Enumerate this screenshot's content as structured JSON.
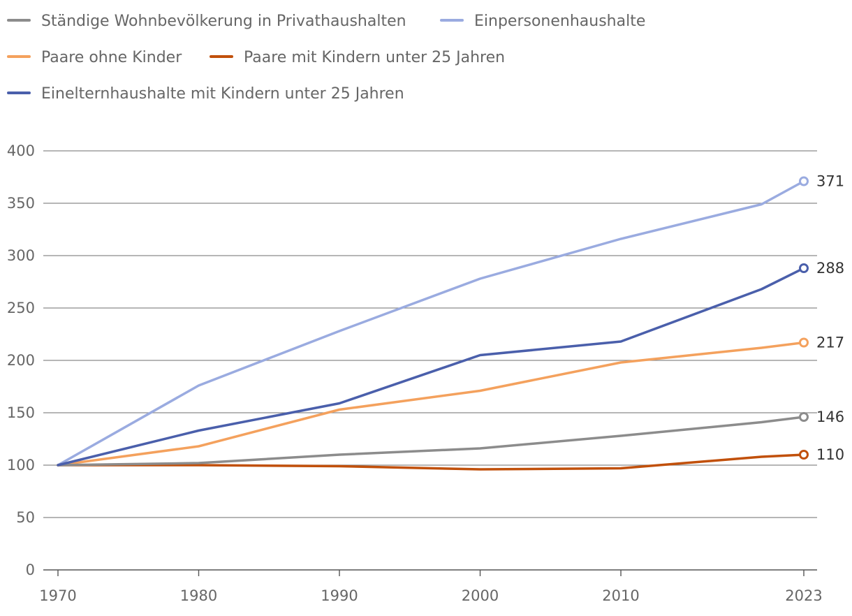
{
  "chart_data": {
    "type": "line",
    "x": [
      1970,
      1980,
      1990,
      2000,
      2010,
      2020,
      2023
    ],
    "x_ticks": [
      "1970",
      "1980",
      "1990",
      "2000",
      "2010",
      "2023"
    ],
    "x_tick_values": [
      1970,
      1980,
      1990,
      2000,
      2010,
      2023
    ],
    "ylim": [
      0,
      400
    ],
    "y_ticks": [
      "0",
      "50",
      "100",
      "150",
      "200",
      "250",
      "300",
      "350",
      "400"
    ],
    "y_tick_values": [
      0,
      50,
      100,
      150,
      200,
      250,
      300,
      350,
      400
    ],
    "grid": true,
    "legend_position": "top",
    "series": [
      {
        "name": "Ständige Wohnbevölkerung in Privathaushalten",
        "color": "#8c8c8c",
        "values": [
          100,
          102,
          110,
          116,
          128,
          141,
          146
        ],
        "end_label": "146"
      },
      {
        "name": "Einpersonenhaushalte",
        "color": "#9aabe0",
        "values": [
          100,
          176,
          228,
          278,
          316,
          349,
          371
        ],
        "end_label": "371"
      },
      {
        "name": "Paare ohne Kinder",
        "color": "#f4a15d",
        "values": [
          100,
          118,
          153,
          171,
          198,
          212,
          217
        ],
        "end_label": "217"
      },
      {
        "name": "Paare mit Kindern unter 25 Jahren",
        "color": "#c1500b",
        "values": [
          100,
          100,
          99,
          96,
          97,
          108,
          110
        ],
        "end_label": "110"
      },
      {
        "name": "Einelternhaushalte mit Kindern unter 25 Jahren",
        "color": "#4a5fab",
        "values": [
          100,
          133,
          159,
          205,
          218,
          268,
          288
        ],
        "end_label": "288"
      }
    ]
  }
}
